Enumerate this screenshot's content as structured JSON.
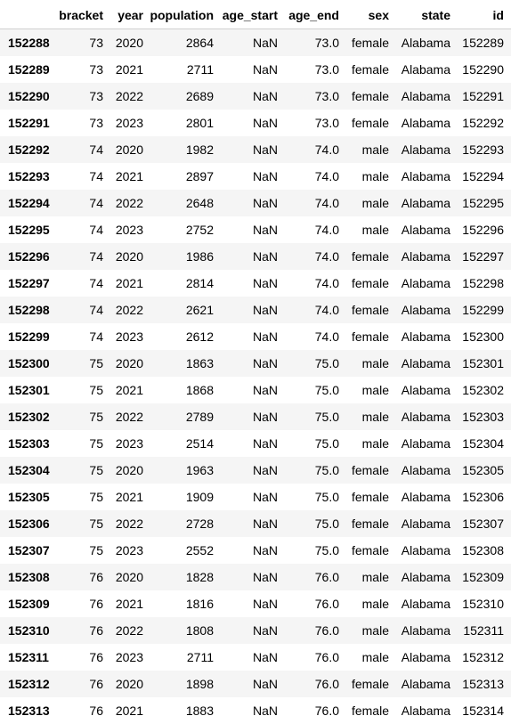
{
  "dataframe": {
    "columns": [
      "bracket",
      "year",
      "population",
      "age_start",
      "age_end",
      "sex",
      "state",
      "id"
    ],
    "rows": [
      {
        "index": "152288",
        "cells": [
          "73",
          "2020",
          "2864",
          "NaN",
          "73.0",
          "female",
          "Alabama",
          "152289"
        ]
      },
      {
        "index": "152289",
        "cells": [
          "73",
          "2021",
          "2711",
          "NaN",
          "73.0",
          "female",
          "Alabama",
          "152290"
        ]
      },
      {
        "index": "152290",
        "cells": [
          "73",
          "2022",
          "2689",
          "NaN",
          "73.0",
          "female",
          "Alabama",
          "152291"
        ]
      },
      {
        "index": "152291",
        "cells": [
          "73",
          "2023",
          "2801",
          "NaN",
          "73.0",
          "female",
          "Alabama",
          "152292"
        ]
      },
      {
        "index": "152292",
        "cells": [
          "74",
          "2020",
          "1982",
          "NaN",
          "74.0",
          "male",
          "Alabama",
          "152293"
        ]
      },
      {
        "index": "152293",
        "cells": [
          "74",
          "2021",
          "2897",
          "NaN",
          "74.0",
          "male",
          "Alabama",
          "152294"
        ]
      },
      {
        "index": "152294",
        "cells": [
          "74",
          "2022",
          "2648",
          "NaN",
          "74.0",
          "male",
          "Alabama",
          "152295"
        ]
      },
      {
        "index": "152295",
        "cells": [
          "74",
          "2023",
          "2752",
          "NaN",
          "74.0",
          "male",
          "Alabama",
          "152296"
        ]
      },
      {
        "index": "152296",
        "cells": [
          "74",
          "2020",
          "1986",
          "NaN",
          "74.0",
          "female",
          "Alabama",
          "152297"
        ]
      },
      {
        "index": "152297",
        "cells": [
          "74",
          "2021",
          "2814",
          "NaN",
          "74.0",
          "female",
          "Alabama",
          "152298"
        ]
      },
      {
        "index": "152298",
        "cells": [
          "74",
          "2022",
          "2621",
          "NaN",
          "74.0",
          "female",
          "Alabama",
          "152299"
        ]
      },
      {
        "index": "152299",
        "cells": [
          "74",
          "2023",
          "2612",
          "NaN",
          "74.0",
          "female",
          "Alabama",
          "152300"
        ]
      },
      {
        "index": "152300",
        "cells": [
          "75",
          "2020",
          "1863",
          "NaN",
          "75.0",
          "male",
          "Alabama",
          "152301"
        ]
      },
      {
        "index": "152301",
        "cells": [
          "75",
          "2021",
          "1868",
          "NaN",
          "75.0",
          "male",
          "Alabama",
          "152302"
        ]
      },
      {
        "index": "152302",
        "cells": [
          "75",
          "2022",
          "2789",
          "NaN",
          "75.0",
          "male",
          "Alabama",
          "152303"
        ]
      },
      {
        "index": "152303",
        "cells": [
          "75",
          "2023",
          "2514",
          "NaN",
          "75.0",
          "male",
          "Alabama",
          "152304"
        ]
      },
      {
        "index": "152304",
        "cells": [
          "75",
          "2020",
          "1963",
          "NaN",
          "75.0",
          "female",
          "Alabama",
          "152305"
        ]
      },
      {
        "index": "152305",
        "cells": [
          "75",
          "2021",
          "1909",
          "NaN",
          "75.0",
          "female",
          "Alabama",
          "152306"
        ]
      },
      {
        "index": "152306",
        "cells": [
          "75",
          "2022",
          "2728",
          "NaN",
          "75.0",
          "female",
          "Alabama",
          "152307"
        ]
      },
      {
        "index": "152307",
        "cells": [
          "75",
          "2023",
          "2552",
          "NaN",
          "75.0",
          "female",
          "Alabama",
          "152308"
        ]
      },
      {
        "index": "152308",
        "cells": [
          "76",
          "2020",
          "1828",
          "NaN",
          "76.0",
          "male",
          "Alabama",
          "152309"
        ]
      },
      {
        "index": "152309",
        "cells": [
          "76",
          "2021",
          "1816",
          "NaN",
          "76.0",
          "male",
          "Alabama",
          "152310"
        ]
      },
      {
        "index": "152310",
        "cells": [
          "76",
          "2022",
          "1808",
          "NaN",
          "76.0",
          "male",
          "Alabama",
          "152311"
        ]
      },
      {
        "index": "152311",
        "cells": [
          "76",
          "2023",
          "2711",
          "NaN",
          "76.0",
          "male",
          "Alabama",
          "152312"
        ]
      },
      {
        "index": "152312",
        "cells": [
          "76",
          "2020",
          "1898",
          "NaN",
          "76.0",
          "female",
          "Alabama",
          "152313"
        ]
      },
      {
        "index": "152313",
        "cells": [
          "76",
          "2021",
          "1883",
          "NaN",
          "76.0",
          "female",
          "Alabama",
          "152314"
        ]
      }
    ]
  }
}
